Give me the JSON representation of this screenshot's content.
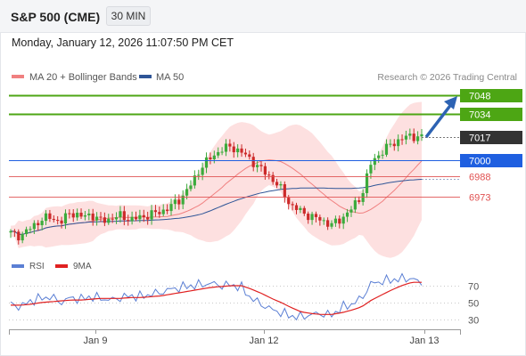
{
  "header": {
    "instrument": "S&P 500 (CME)",
    "interval": "30 MIN",
    "datetime": "Monday, January 12, 2026 11:07:50 PM CET"
  },
  "legend": {
    "ma20": {
      "label": "MA 20 + Bollinger Bands",
      "color": "#f08080"
    },
    "ma50": {
      "label": "MA 50",
      "color": "#2f5597"
    },
    "credit": "Research © 2026 Trading Central"
  },
  "rsi_legend": {
    "rsi": {
      "label": "RSI",
      "color": "#5b7fd4"
    },
    "ma9": {
      "label": "9MA",
      "color": "#e02020"
    }
  },
  "colors": {
    "resistance": "#4da614",
    "pivot": "#1f5fe0",
    "support": "#e05050",
    "last_price": "#333333",
    "arrow": "#2d63b3",
    "bollinger_fill": "#fde0e0",
    "candle_up": "#3cab3c",
    "candle_down": "#cc2a2a"
  },
  "chart_data": [
    {
      "type": "candlestick",
      "title": "",
      "x_ticks": [
        "Jan 9",
        "Jan 12",
        "Jan 13"
      ],
      "y_range": [
        6920,
        7060
      ],
      "series": [
        {
          "name": "MA 20 + Bollinger Bands",
          "values": "see price chart"
        },
        {
          "name": "MA 50"
        }
      ],
      "key_levels": [
        {
          "label": "7048",
          "value": 7048,
          "kind": "resistance"
        },
        {
          "label": "7034",
          "value": 7034,
          "kind": "resistance"
        },
        {
          "label": "7017",
          "value": 7017,
          "kind": "last"
        },
        {
          "label": "7000",
          "value": 7000,
          "kind": "pivot"
        },
        {
          "label": "6988",
          "value": 6988,
          "kind": "support"
        },
        {
          "label": "6973",
          "value": 6973,
          "kind": "support"
        }
      ],
      "price_path": [
        6946,
        6944,
        6950,
        6956,
        6958,
        6954,
        6962,
        6958,
        6960,
        6955,
        6957,
        6959,
        6956,
        6958,
        6960,
        6962,
        6966,
        6972,
        6982,
        6995,
        7002,
        7008,
        7010,
        7006,
        7000,
        6993,
        6987,
        6978,
        6966,
        6962,
        6958,
        6956,
        6952,
        6957,
        6964,
        6974,
        6999,
        7006,
        7012,
        7016,
        7018,
        7017
      ],
      "outlook": "bullish, targets 7034 then 7048"
    },
    {
      "type": "line",
      "title": "",
      "yticks": [
        30,
        50,
        70
      ],
      "ylim": [
        20,
        90
      ],
      "series": [
        {
          "name": "RSI",
          "values": [
            48,
            45,
            52,
            55,
            57,
            50,
            56,
            54,
            57,
            55,
            53,
            56,
            58,
            57,
            60,
            62,
            66,
            68,
            70,
            71,
            73,
            70,
            71,
            68,
            55,
            48,
            42,
            38,
            34,
            33,
            36,
            37,
            35,
            44,
            48,
            55,
            73,
            75,
            77,
            78,
            79,
            72
          ]
        },
        {
          "name": "9MA",
          "values": [
            47,
            47,
            48,
            50,
            51,
            52,
            53,
            53,
            54,
            55,
            55,
            55,
            56,
            56,
            57,
            58,
            60,
            62,
            64,
            66,
            68,
            69,
            70,
            70,
            66,
            61,
            55,
            50,
            44,
            39,
            37,
            36,
            36,
            38,
            41,
            45,
            53,
            59,
            65,
            70,
            74,
            74
          ]
        }
      ]
    }
  ]
}
